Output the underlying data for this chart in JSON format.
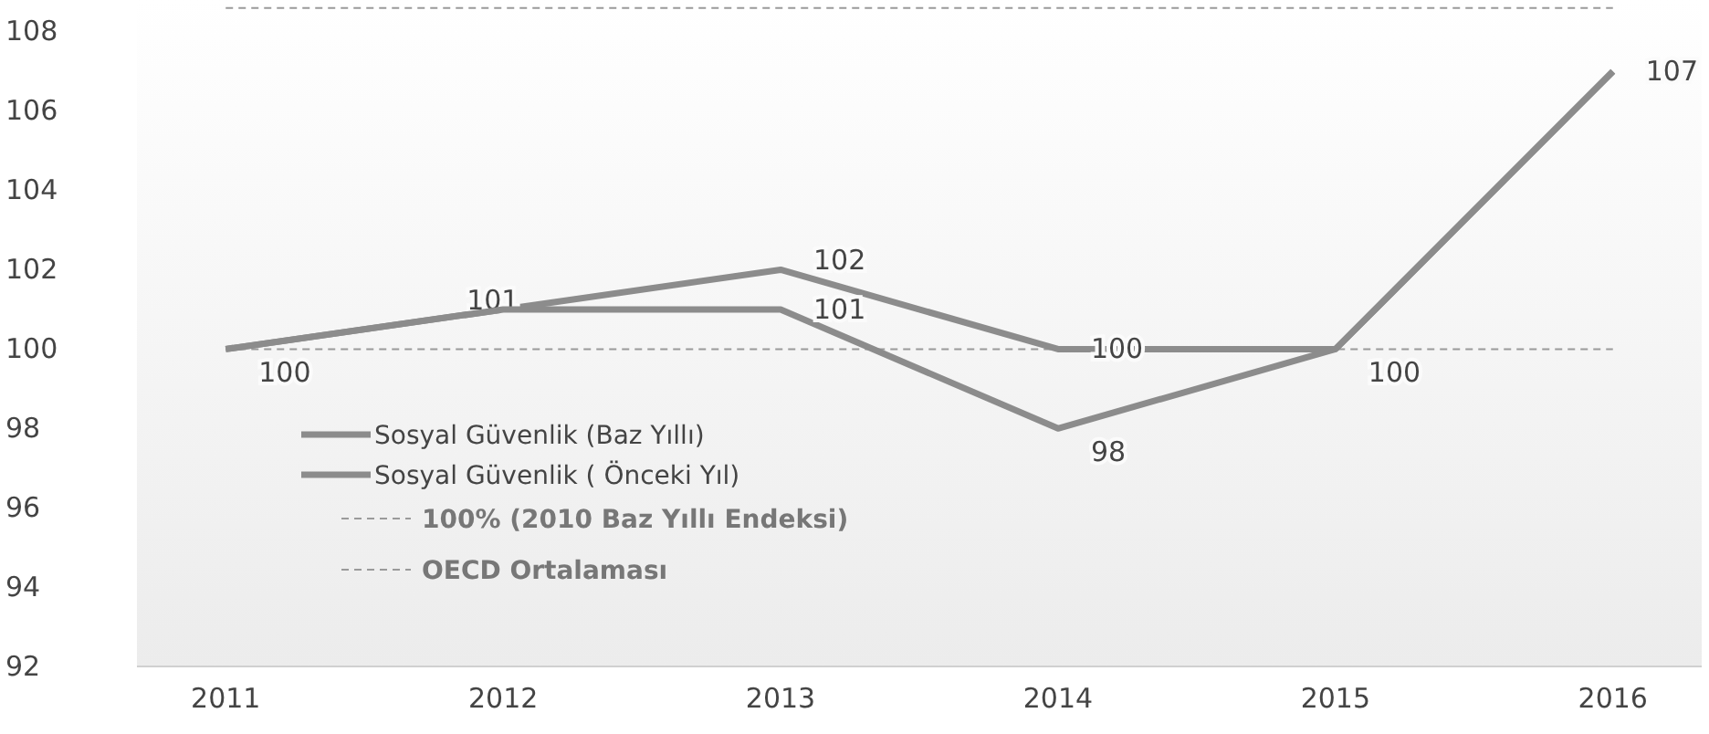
{
  "chart_data": {
    "type": "line",
    "categories": [
      "2011",
      "2012",
      "2013",
      "2014",
      "2015",
      "2016"
    ],
    "series": [
      {
        "name": "Sosyal Güvenlik  (Baz Yıllı)",
        "color": "#8c8c8c",
        "values": [
          100,
          101,
          102,
          100,
          100,
          107
        ],
        "value_labels": [
          "100",
          "101",
          "102",
          "100",
          "100",
          "107"
        ]
      },
      {
        "name": "Sosyal Güvenlik   ( Önceki Yıl)",
        "color": "#8c8c8c",
        "values": [
          100,
          101,
          101,
          98,
          100,
          107
        ],
        "value_labels": [
          null,
          null,
          "101",
          "98",
          null,
          null
        ]
      }
    ],
    "ylim": [
      92,
      108.8
    ],
    "yticks": [
      92,
      94,
      96,
      98,
      100,
      102,
      104,
      106,
      108
    ],
    "ref_lines": [
      {
        "axis": "y",
        "value": 100,
        "label": "100% (2010 Baz Yıllı Endeksi)",
        "color": "#9a9a9a",
        "line_style": "dashed"
      },
      {
        "axis": "y",
        "value": 108.6,
        "label": "OECD Ortalaması",
        "color": "#9a9a9a",
        "line_style": "dashed"
      }
    ],
    "legend": "bottom left",
    "grid": false,
    "marker": "none",
    "line_style": "solid"
  }
}
